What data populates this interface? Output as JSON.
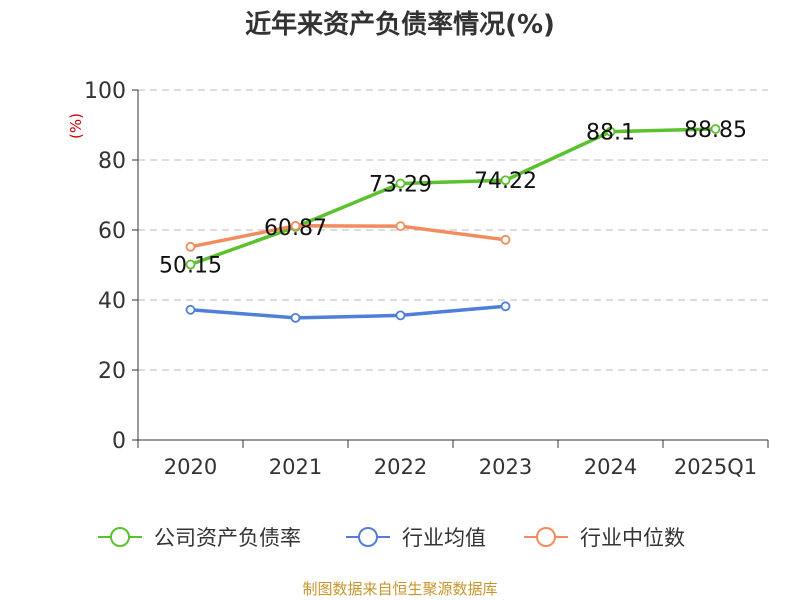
{
  "chart_data": {
    "type": "line",
    "title": "近年来资产负债率情况(%)",
    "ylabel": "(%)",
    "xlabel": "",
    "categories": [
      "2020",
      "2021",
      "2022",
      "2023",
      "2024",
      "2025Q1"
    ],
    "ylim": [
      0,
      100
    ],
    "yticks": [
      0,
      20,
      40,
      60,
      80,
      100
    ],
    "grid": true,
    "legend_position": "bottom",
    "series": [
      {
        "name": "公司资产负债率",
        "color": "#5cc12f",
        "values": [
          50.15,
          60.87,
          73.29,
          74.22,
          88.1,
          88.85
        ],
        "labels": [
          "50.15",
          "60.87",
          "73.29",
          "74.22",
          "88.1",
          "88.85"
        ]
      },
      {
        "name": "行业均值",
        "color": "#4f7fd9",
        "values": [
          37.2,
          34.9,
          35.6,
          38.2,
          null,
          null
        ]
      },
      {
        "name": "行业中位数",
        "color": "#f28c5c",
        "values": [
          55.2,
          61.2,
          61.1,
          57.2,
          null,
          null
        ]
      }
    ]
  },
  "footer": {
    "source": "制图数据来自恒生聚源数据库"
  }
}
